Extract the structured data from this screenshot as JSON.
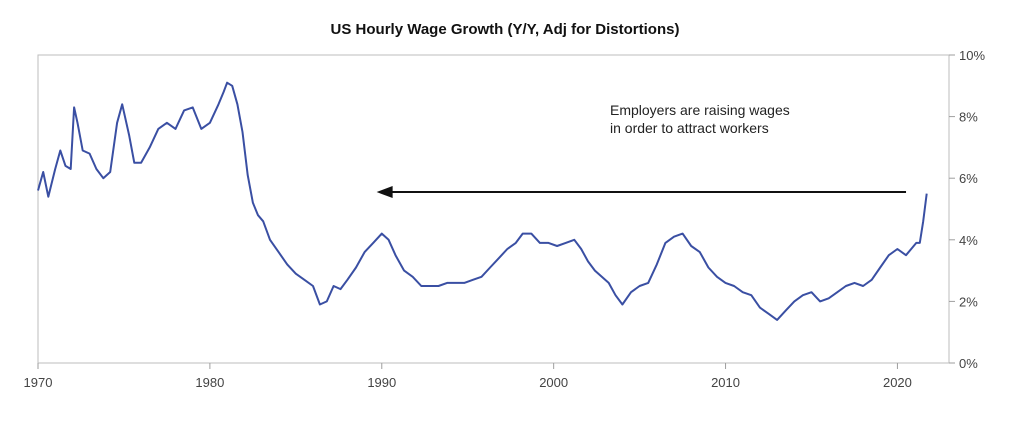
{
  "chart_data": {
    "type": "line",
    "title": "US Hourly Wage Growth (Y/Y, Adj for Distortions)",
    "xlabel": "",
    "ylabel": "",
    "xlim": [
      1970,
      2023
    ],
    "ylim": [
      0,
      10
    ],
    "x_ticks": [
      1970,
      1980,
      1990,
      2000,
      2010,
      2020
    ],
    "x_tick_labels": [
      "1970",
      "1980",
      "1990",
      "2000",
      "2010",
      "2020"
    ],
    "y_ticks": [
      0,
      2,
      4,
      6,
      8,
      10
    ],
    "y_tick_labels": [
      "0%",
      "2%",
      "4%",
      "6%",
      "8%",
      "10%"
    ],
    "y_axis_side": "right",
    "grid": false,
    "line_color": "#3a4fa3",
    "series": [
      {
        "x": [
          1970.0,
          1970.3,
          1970.6,
          1971.0,
          1971.3,
          1971.6,
          1971.9,
          1972.1,
          1972.3,
          1972.6,
          1973.0,
          1973.4,
          1973.8,
          1974.2,
          1974.6,
          1974.9,
          1975.3,
          1975.6,
          1976.0,
          1976.5,
          1977.0,
          1977.5,
          1978.0,
          1978.5,
          1979.0,
          1979.5,
          1980.0,
          1980.5,
          1980.8,
          1981.0,
          1981.3,
          1981.6,
          1981.9,
          1982.2,
          1982.5,
          1982.8,
          1983.1,
          1983.5,
          1984.0,
          1984.5,
          1985.0,
          1985.5,
          1986.0,
          1986.4,
          1986.8,
          1987.2,
          1987.6,
          1988.0,
          1988.5,
          1989.0,
          1989.5,
          1990.0,
          1990.4,
          1990.8,
          1991.3,
          1991.8,
          1992.3,
          1992.8,
          1993.3,
          1993.8,
          1994.3,
          1994.8,
          1995.3,
          1995.8,
          1996.3,
          1996.8,
          1997.3,
          1997.8,
          1998.2,
          1998.7,
          1999.2,
          1999.7,
          2000.2,
          2000.7,
          2001.2,
          2001.6,
          2002.0,
          2002.4,
          2002.8,
          2003.2,
          2003.6,
          2004.0,
          2004.5,
          2005.0,
          2005.5,
          2006.0,
          2006.5,
          2007.0,
          2007.5,
          2008.0,
          2008.5,
          2009.0,
          2009.5,
          2010.0,
          2010.5,
          2011.0,
          2011.5,
          2012.0,
          2012.5,
          2013.0,
          2013.5,
          2014.0,
          2014.5,
          2015.0,
          2015.5,
          2016.0,
          2016.5,
          2017.0,
          2017.5,
          2018.0,
          2018.5,
          2019.0,
          2019.5,
          2020.0,
          2020.5,
          2020.8,
          2021.1,
          2021.3,
          2021.5,
          2021.7
        ],
        "values": [
          5.6,
          6.2,
          5.4,
          6.3,
          6.9,
          6.4,
          6.3,
          8.3,
          7.8,
          6.9,
          6.8,
          6.3,
          6.0,
          6.2,
          7.8,
          8.4,
          7.4,
          6.5,
          6.5,
          7.0,
          7.6,
          7.8,
          7.6,
          8.2,
          8.3,
          7.6,
          7.8,
          8.4,
          8.8,
          9.1,
          9.0,
          8.4,
          7.5,
          6.1,
          5.2,
          4.8,
          4.6,
          4.0,
          3.6,
          3.2,
          2.9,
          2.7,
          2.5,
          1.9,
          2.0,
          2.5,
          2.4,
          2.7,
          3.1,
          3.6,
          3.9,
          4.2,
          4.0,
          3.5,
          3.0,
          2.8,
          2.5,
          2.5,
          2.5,
          2.6,
          2.6,
          2.6,
          2.7,
          2.8,
          3.1,
          3.4,
          3.7,
          3.9,
          4.2,
          4.2,
          3.9,
          3.9,
          3.8,
          3.9,
          4.0,
          3.7,
          3.3,
          3.0,
          2.8,
          2.6,
          2.2,
          1.9,
          2.3,
          2.5,
          2.6,
          3.2,
          3.9,
          4.1,
          4.2,
          3.8,
          3.6,
          3.1,
          2.8,
          2.6,
          2.5,
          2.3,
          2.2,
          1.8,
          1.6,
          1.4,
          1.7,
          2.0,
          2.2,
          2.3,
          2.0,
          2.1,
          2.3,
          2.5,
          2.6,
          2.5,
          2.7,
          3.1,
          3.5,
          3.7,
          3.5,
          3.7,
          3.9,
          3.9,
          4.6,
          5.5
        ]
      }
    ],
    "annotation": {
      "lines": [
        "Employers are raising wages",
        "in order to attract workers"
      ],
      "arrow_from": [
        2020.5,
        5.55
      ],
      "arrow_to": [
        1989.7,
        5.55
      ],
      "arrow_direction": "left"
    }
  }
}
